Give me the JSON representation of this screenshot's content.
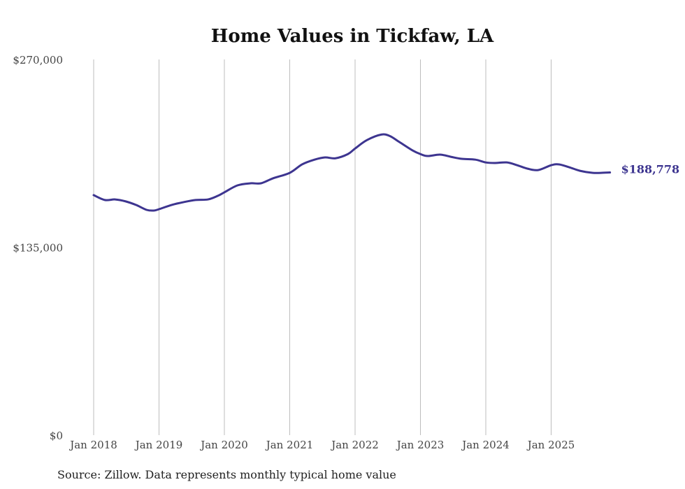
{
  "chart_data": {
    "type": "line",
    "title": "Home Values in Tickfaw, LA",
    "xlabel": "",
    "ylabel": "",
    "source": "Source: Zillow. Data represents monthly typical home value",
    "ylim": [
      0,
      270000
    ],
    "xlim": [
      2018,
      2026
    ],
    "grid": "vertical",
    "y_ticks": [
      {
        "value": 270000,
        "label": "$270,000"
      },
      {
        "value": 135000,
        "label": "$135,000"
      },
      {
        "value": 0,
        "label": "$0"
      }
    ],
    "x_ticks": [
      {
        "value": 2018,
        "label": "Jan 2018"
      },
      {
        "value": 2019,
        "label": "Jan 2019"
      },
      {
        "value": 2020,
        "label": "Jan 2020"
      },
      {
        "value": 2021,
        "label": "Jan 2021"
      },
      {
        "value": 2022,
        "label": "Jan 2022"
      },
      {
        "value": 2023,
        "label": "Jan 2023"
      },
      {
        "value": 2024,
        "label": "Jan 2024"
      },
      {
        "value": 2025,
        "label": "Jan 2025"
      }
    ],
    "series": [
      {
        "name": "Home value",
        "color": "#3d3590",
        "end_label": "$188,778",
        "x": [
          2018.0,
          2018.17,
          2018.33,
          2018.49,
          2018.65,
          2018.81,
          2018.92,
          2019.0,
          2019.19,
          2019.37,
          2019.56,
          2019.75,
          2019.9,
          2020.0,
          2020.2,
          2020.4,
          2020.56,
          2020.74,
          2021.0,
          2021.19,
          2021.38,
          2021.54,
          2021.7,
          2021.89,
          2022.0,
          2022.18,
          2022.4,
          2022.53,
          2022.68,
          2022.88,
          2023.0,
          2023.11,
          2023.3,
          2023.47,
          2023.63,
          2023.84,
          2024.0,
          2024.14,
          2024.32,
          2024.48,
          2024.64,
          2024.8,
          2025.0,
          2025.12,
          2025.28,
          2025.44,
          2025.64,
          2025.76,
          2025.9
        ],
        "values": [
          172500,
          169000,
          169400,
          168000,
          165400,
          161900,
          161400,
          162400,
          165400,
          167400,
          169000,
          169400,
          172000,
          174500,
          179500,
          181000,
          181000,
          184500,
          188500,
          194600,
          198000,
          199600,
          199000,
          202000,
          206000,
          212000,
          216000,
          215000,
          210600,
          204600,
          202000,
          200600,
          201600,
          200000,
          198600,
          198000,
          196000,
          195600,
          196000,
          194000,
          191500,
          190500,
          194000,
          194600,
          192500,
          190000,
          188500,
          188500,
          188778
        ]
      }
    ]
  }
}
